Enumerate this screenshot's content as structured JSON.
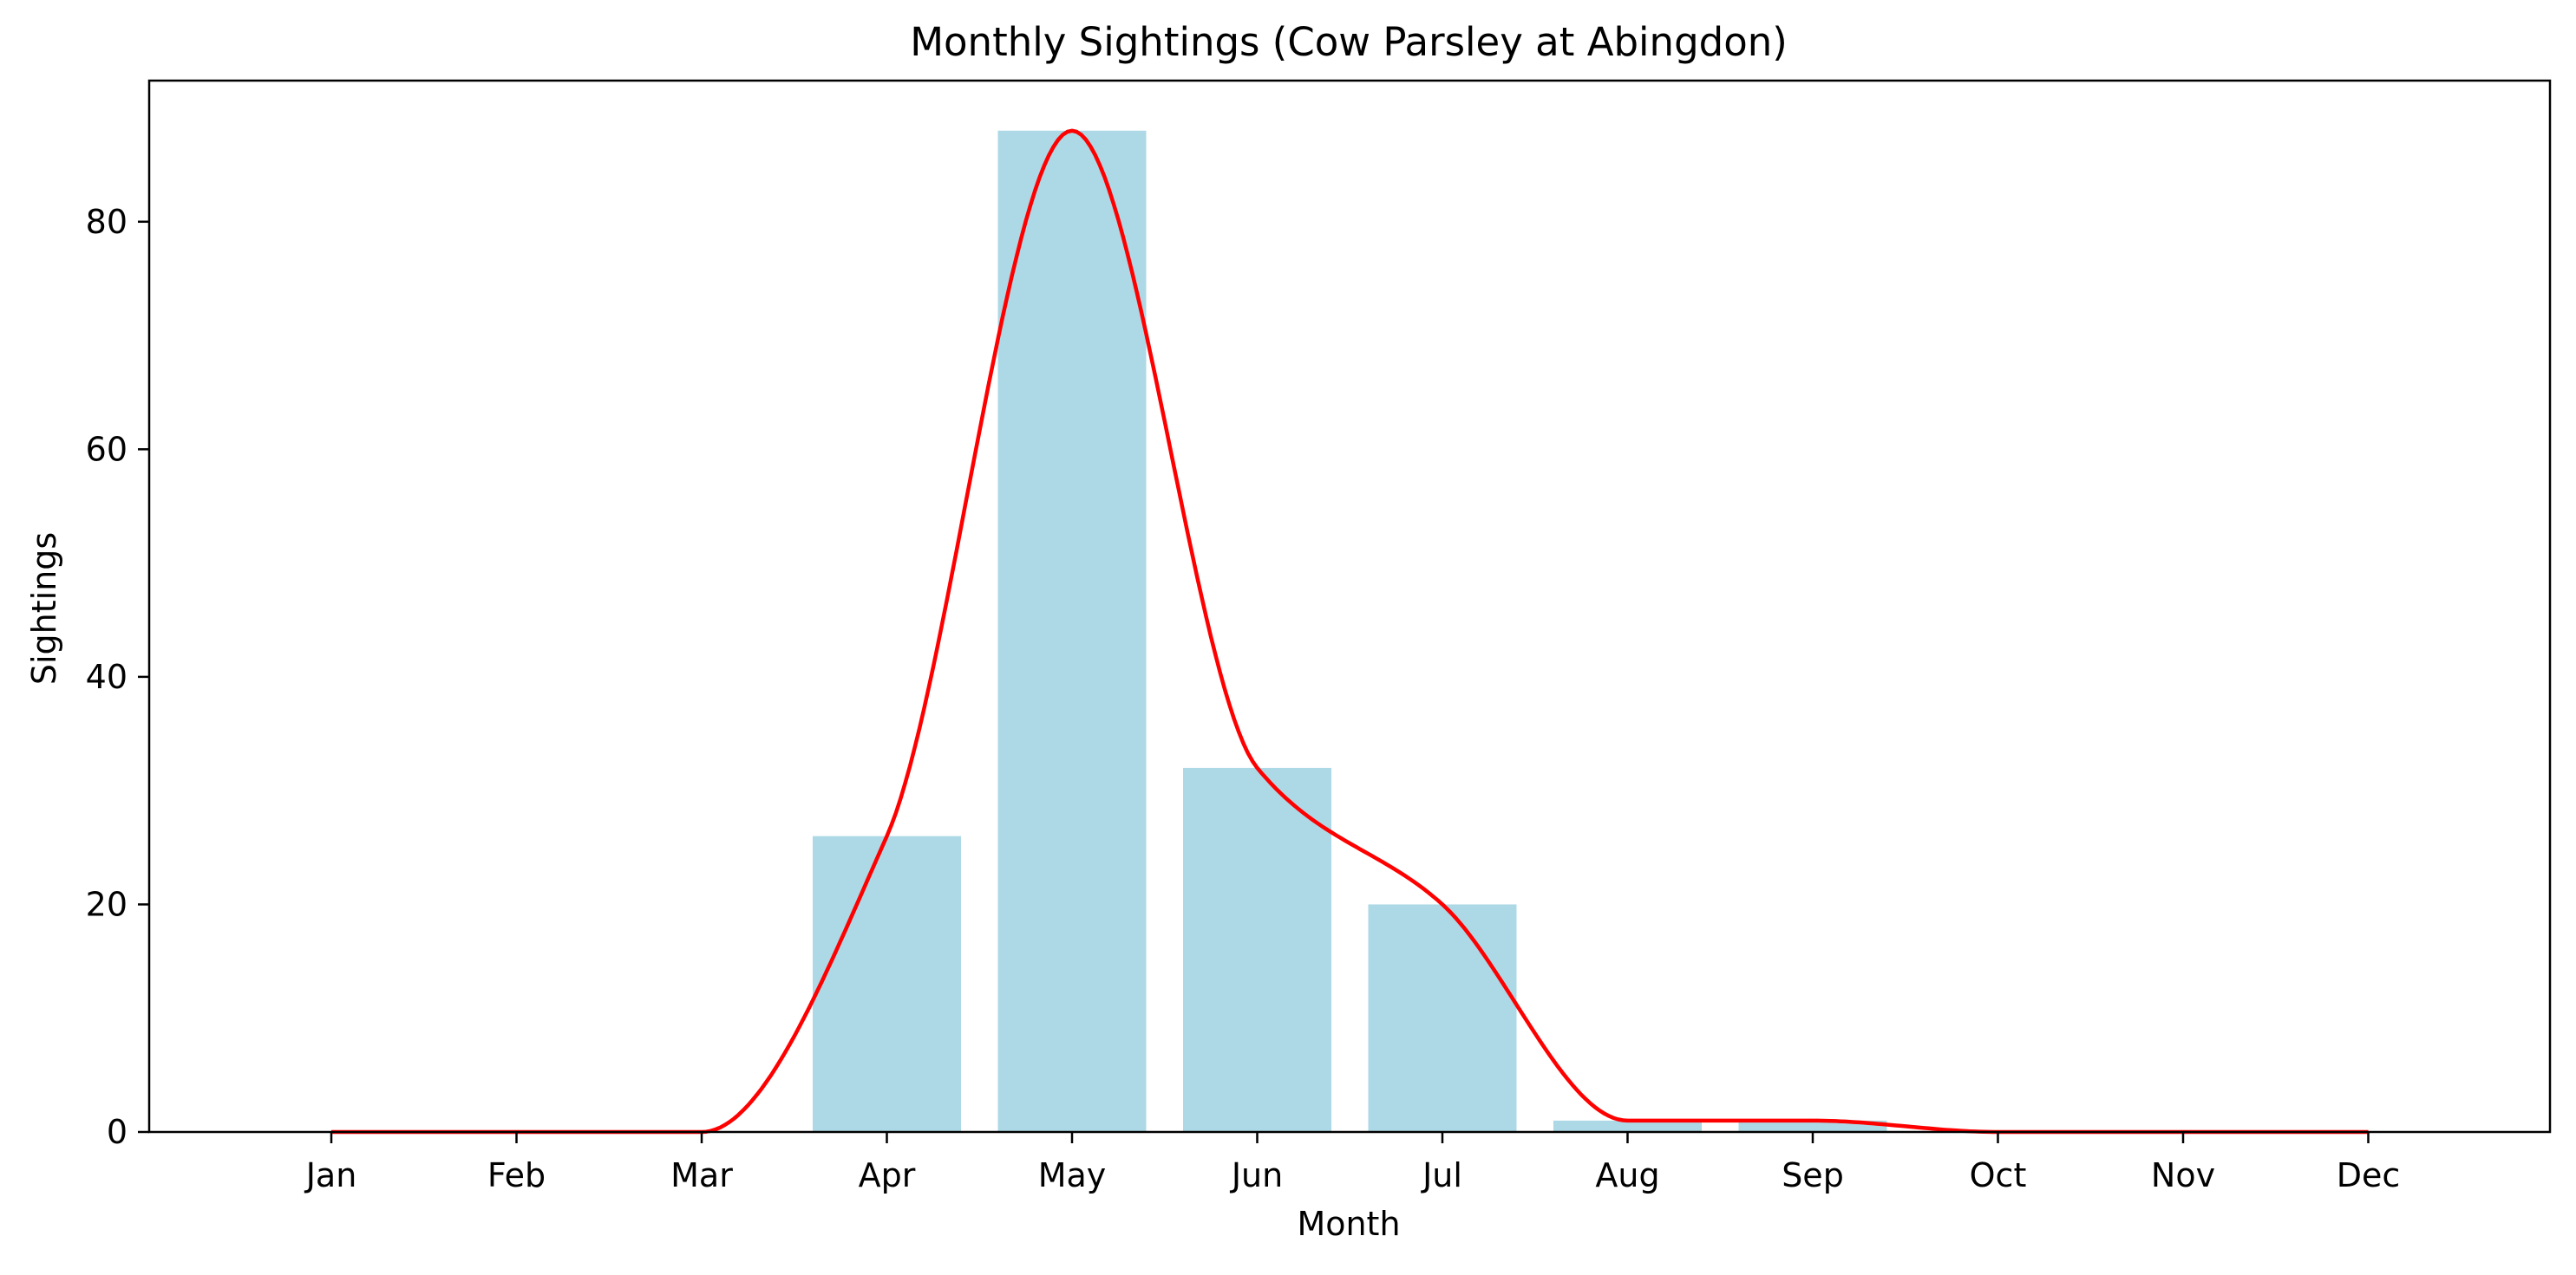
{
  "chart_data": {
    "type": "bar",
    "title": "Monthly Sightings (Cow Parsley at Abingdon)",
    "xlabel": "Month",
    "ylabel": "Sightings",
    "categories": [
      "Jan",
      "Feb",
      "Mar",
      "Apr",
      "May",
      "Jun",
      "Jul",
      "Aug",
      "Sep",
      "Oct",
      "Nov",
      "Dec"
    ],
    "values": [
      0,
      0,
      0,
      26,
      88,
      32,
      20,
      1,
      1,
      0,
      0,
      0
    ],
    "ylim": [
      0,
      92.4
    ],
    "yticks": [
      0,
      20,
      40,
      60,
      80
    ],
    "ytick_labels": [
      "0",
      "20",
      "40",
      "60",
      "80"
    ],
    "grid": false,
    "overlay": {
      "type": "line",
      "smooth": true,
      "values": [
        0,
        0,
        0,
        26,
        88,
        32,
        20,
        1,
        1,
        0,
        0,
        0
      ]
    },
    "colors": {
      "bar": "#add8e6",
      "line": "#ff0000",
      "axis": "#000000"
    }
  }
}
